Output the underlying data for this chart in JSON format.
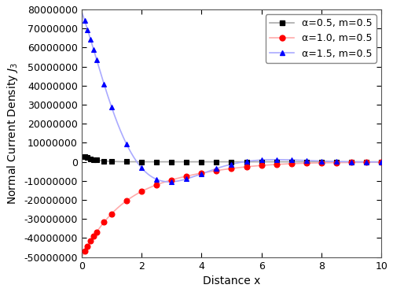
{
  "title": "",
  "xlabel": "Distance x",
  "ylabel": "Normal Current Density $J_3$",
  "xlim": [
    0,
    10
  ],
  "ylim": [
    -50000000,
    80000000
  ],
  "yticks": [
    -50000000,
    -40000000,
    -30000000,
    -20000000,
    -10000000,
    0,
    10000000,
    20000000,
    30000000,
    40000000,
    50000000,
    60000000,
    70000000,
    80000000
  ],
  "xticks": [
    0,
    2,
    4,
    6,
    8,
    10
  ],
  "legend_labels": [
    "α=0.5, m=0.5",
    "α=1.0, m=0.5",
    "α=1.5, m=0.5"
  ],
  "line_colors": [
    "#aaaaaa",
    "#ffaaaa",
    "#aaaaff"
  ],
  "marker_colors": [
    "#000000",
    "#ff0000",
    "#0000ff"
  ],
  "marker_styles": [
    "s",
    "o",
    "^"
  ],
  "marker_size": 5,
  "linewidth": 1.2,
  "figsize": [
    5.0,
    3.71
  ],
  "dpi": 100,
  "bg_color": "#ffffff",
  "legend_fontsize": 9,
  "axis_fontsize": 10,
  "tick_fontsize": 9
}
